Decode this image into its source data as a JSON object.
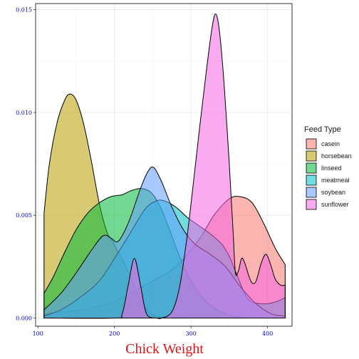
{
  "chart_data": {
    "type": "area",
    "subtype": "density",
    "xlabel": "Chick Weight",
    "ylabel": "",
    "xlim": [
      97,
      432
    ],
    "ylim": [
      -0.0004,
      0.0153
    ],
    "x_ticks": [
      {
        "value": 100,
        "label": "100"
      },
      {
        "value": 200,
        "label": "200"
      },
      {
        "value": 300,
        "label": "300"
      },
      {
        "value": 400,
        "label": "400"
      }
    ],
    "y_ticks": [
      {
        "value": 0.0,
        "label": "0.000"
      },
      {
        "value": 0.005,
        "label": "0.005"
      },
      {
        "value": 0.01,
        "label": "0.010"
      },
      {
        "value": 0.015,
        "label": "0.015"
      }
    ],
    "grid": true,
    "legend": {
      "title": "Feed Type",
      "placement": "right"
    },
    "series": [
      {
        "name": "casein",
        "color": "#F8766D",
        "points": [
          [
            108,
            0.0002
          ],
          [
            130,
            0.0003
          ],
          [
            160,
            0.0004
          ],
          [
            200,
            0.0008
          ],
          [
            225,
            0.0013
          ],
          [
            250,
            0.0018
          ],
          [
            280,
            0.0025
          ],
          [
            310,
            0.0038
          ],
          [
            330,
            0.005
          ],
          [
            350,
            0.0058
          ],
          [
            365,
            0.0059
          ],
          [
            380,
            0.0056
          ],
          [
            395,
            0.0046
          ],
          [
            410,
            0.0034
          ],
          [
            423,
            0.0026
          ]
        ]
      },
      {
        "name": "horsebean",
        "color": "#B79F00",
        "points": [
          [
            108,
            0.0051
          ],
          [
            115,
            0.0075
          ],
          [
            125,
            0.0095
          ],
          [
            135,
            0.0106
          ],
          [
            142,
            0.0109
          ],
          [
            150,
            0.0106
          ],
          [
            160,
            0.0094
          ],
          [
            170,
            0.0076
          ],
          [
            180,
            0.0056
          ],
          [
            190,
            0.0042
          ],
          [
            198,
            0.0037
          ],
          [
            205,
            0.0032
          ],
          [
            215,
            0.0025
          ],
          [
            225,
            0.0016
          ],
          [
            235,
            0.0008
          ],
          [
            245,
            0.0003
          ],
          [
            255,
            0.0001
          ],
          [
            270,
            0.0
          ]
        ]
      },
      {
        "name": "linseed",
        "color": "#00BA38",
        "points": [
          [
            108,
            0.0012
          ],
          [
            120,
            0.002
          ],
          [
            135,
            0.0032
          ],
          [
            150,
            0.0043
          ],
          [
            165,
            0.0051
          ],
          [
            180,
            0.0056
          ],
          [
            195,
            0.0059
          ],
          [
            210,
            0.006
          ],
          [
            222,
            0.0062
          ],
          [
            235,
            0.0063
          ],
          [
            248,
            0.0061
          ],
          [
            260,
            0.0054
          ],
          [
            272,
            0.0043
          ],
          [
            285,
            0.003
          ],
          [
            300,
            0.0018
          ],
          [
            320,
            0.0008
          ],
          [
            345,
            0.0002
          ],
          [
            370,
            0.0
          ]
        ]
      },
      {
        "name": "meatmeal",
        "color": "#00BFC4",
        "points": [
          [
            108,
            0.0001
          ],
          [
            130,
            0.0004
          ],
          [
            155,
            0.001
          ],
          [
            180,
            0.0018
          ],
          [
            200,
            0.0029
          ],
          [
            220,
            0.0041
          ],
          [
            240,
            0.0053
          ],
          [
            255,
            0.0057
          ],
          [
            265,
            0.0057
          ],
          [
            280,
            0.0054
          ],
          [
            295,
            0.0049
          ],
          [
            310,
            0.0045
          ],
          [
            325,
            0.0041
          ],
          [
            340,
            0.0036
          ],
          [
            350,
            0.003
          ],
          [
            360,
            0.0021
          ],
          [
            370,
            0.0012
          ],
          [
            378,
            0.0008
          ],
          [
            390,
            0.0007
          ],
          [
            400,
            0.0007
          ],
          [
            412,
            0.0008
          ],
          [
            423,
            0.001
          ]
        ]
      },
      {
        "name": "soybean",
        "color": "#619CFF",
        "points": [
          [
            108,
            0.0004
          ],
          [
            130,
            0.0012
          ],
          [
            150,
            0.0022
          ],
          [
            170,
            0.0033
          ],
          [
            185,
            0.004
          ],
          [
            195,
            0.0039
          ],
          [
            203,
            0.0037
          ],
          [
            210,
            0.004
          ],
          [
            220,
            0.0048
          ],
          [
            235,
            0.0064
          ],
          [
            245,
            0.0072
          ],
          [
            252,
            0.0073
          ],
          [
            262,
            0.0066
          ],
          [
            275,
            0.0054
          ],
          [
            290,
            0.0043
          ],
          [
            305,
            0.0036
          ],
          [
            325,
            0.0031
          ],
          [
            345,
            0.0025
          ],
          [
            365,
            0.0015
          ],
          [
            385,
            0.0007
          ],
          [
            405,
            0.0002
          ],
          [
            423,
            0.0001
          ]
        ]
      },
      {
        "name": "sunflower",
        "color": "#F564E3",
        "points": [
          [
            108,
            0.0
          ],
          [
            200,
            0.0
          ],
          [
            210,
            0.0002
          ],
          [
            218,
            0.0016
          ],
          [
            226,
            0.0029
          ],
          [
            234,
            0.0016
          ],
          [
            242,
            0.0002
          ],
          [
            255,
            0.0
          ],
          [
            262,
            0.0
          ],
          [
            275,
            0.0003
          ],
          [
            285,
            0.0015
          ],
          [
            295,
            0.004
          ],
          [
            305,
            0.0072
          ],
          [
            312,
            0.0095
          ],
          [
            320,
            0.012
          ],
          [
            327,
            0.014
          ],
          [
            332,
            0.0148
          ],
          [
            337,
            0.014
          ],
          [
            343,
            0.0115
          ],
          [
            350,
            0.0075
          ],
          [
            355,
            0.0042
          ],
          [
            358,
            0.0022
          ],
          [
            362,
            0.0023
          ],
          [
            366,
            0.0029
          ],
          [
            370,
            0.0027
          ],
          [
            376,
            0.002
          ],
          [
            380,
            0.0017
          ],
          [
            385,
            0.0018
          ],
          [
            392,
            0.0027
          ],
          [
            398,
            0.0031
          ],
          [
            404,
            0.0026
          ],
          [
            410,
            0.0019
          ],
          [
            417,
            0.0016
          ],
          [
            423,
            0.0016
          ]
        ]
      }
    ]
  }
}
